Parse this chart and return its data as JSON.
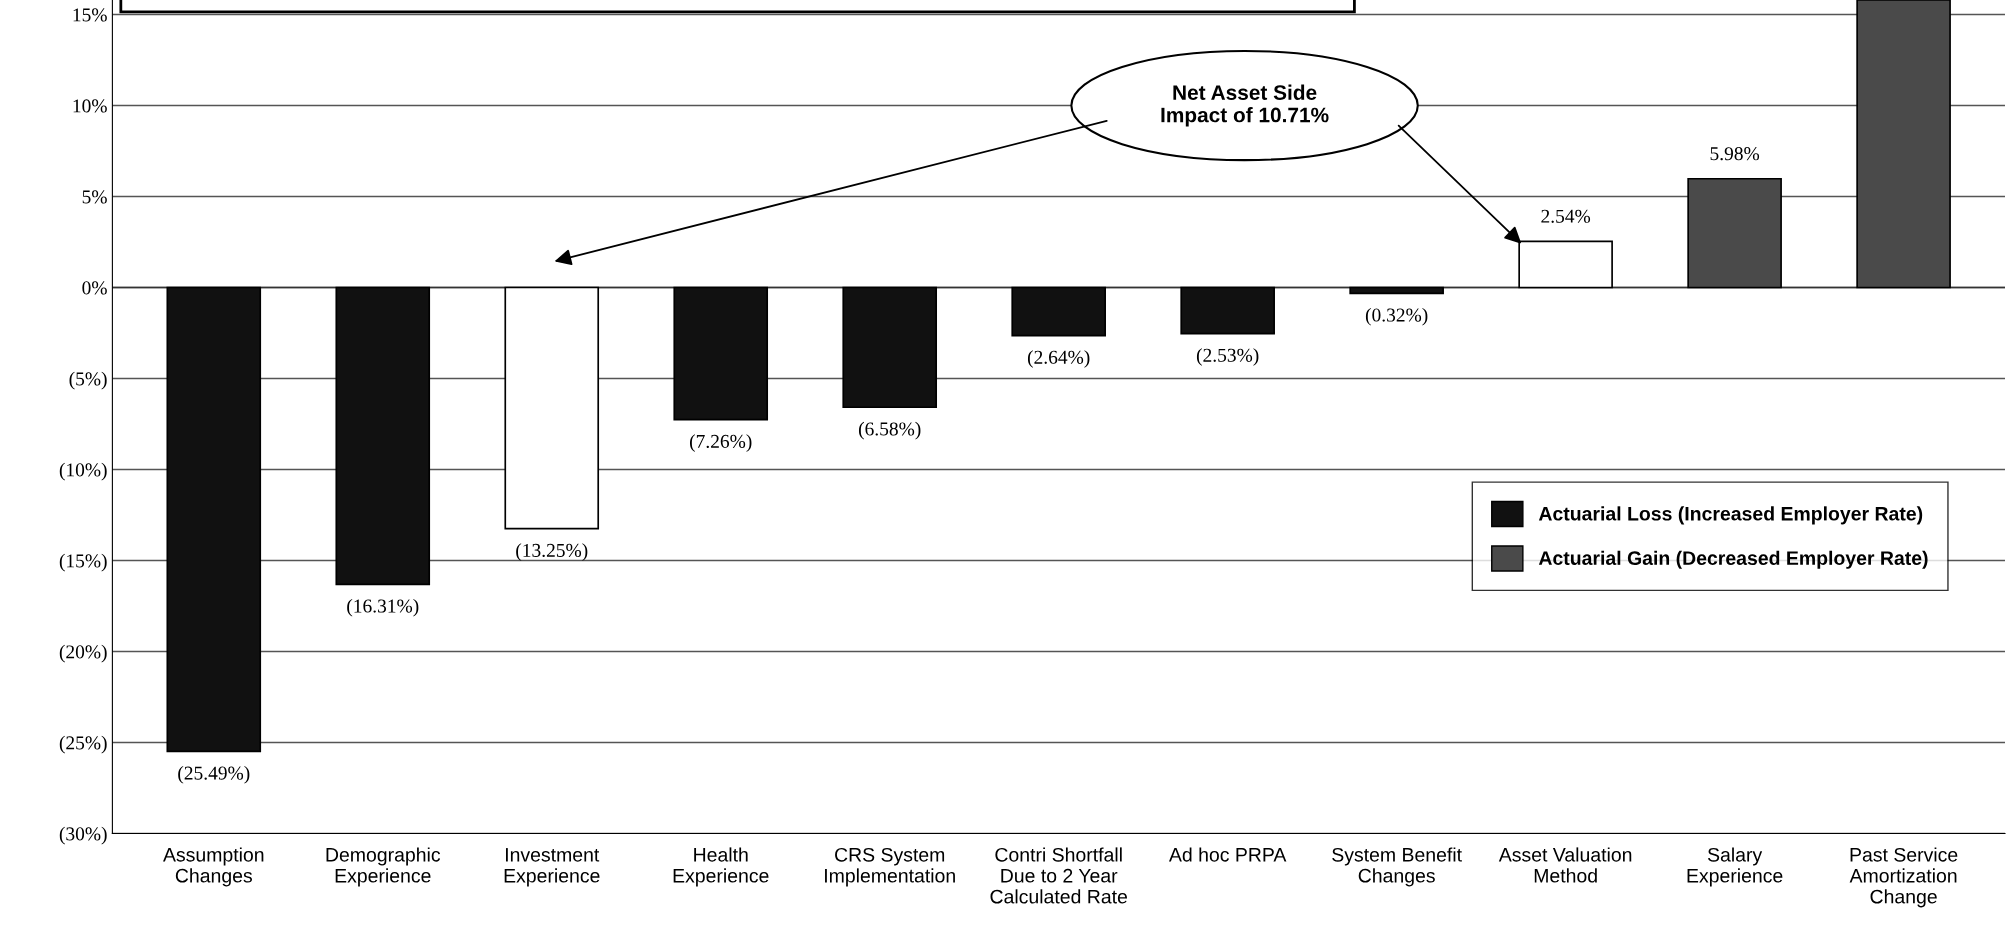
{
  "chart_data": {
    "type": "bar",
    "stacked": true,
    "categories": [
      "Assumption\nChanges",
      "Demographic\nExperience",
      "Investment\nExperience",
      "Health\nExperience",
      "CRS System\nImplementation",
      "Contri Shortfall\nDue to 2 Year\nCalculated Rate",
      "Ad hoc PRPA",
      "System Benefit\nChanges",
      "Asset Valuation\nMethod",
      "Salary\nExperience",
      "Past Service\nAmortization\nChange"
    ],
    "series": [
      {
        "name": "Actuarial Loss (Increased Employer Rate)",
        "color": "#111111",
        "values": [
          -25.49,
          -16.31,
          null,
          -7.26,
          -6.58,
          -2.64,
          -2.53,
          -0.32,
          null,
          null,
          null
        ],
        "value_labels": [
          "(25.49%)",
          "(16.31%)",
          null,
          "(7.26%)",
          "(6.58%)",
          "(2.64%)",
          "(2.53%)",
          "(0.32%)",
          null,
          null,
          null
        ]
      },
      {
        "name": "Actuarial Gain (Decreased Employer Rate)",
        "color": "#4a4a4a",
        "values": [
          null,
          null,
          null,
          null,
          null,
          null,
          null,
          null,
          null,
          5.98,
          15.8
        ],
        "value_labels": [
          null,
          null,
          null,
          null,
          null,
          null,
          null,
          null,
          null,
          "5.98%",
          null
        ]
      },
      {
        "color": "#ffffff",
        "values": [
          null,
          null,
          -13.25,
          null,
          null,
          null,
          null,
          null,
          2.54,
          null,
          null
        ],
        "value_labels": [
          null,
          null,
          "(13.25%)",
          null,
          null,
          null,
          null,
          null,
          "2.54%",
          null,
          null
        ]
      }
    ],
    "ylim": [
      -30,
      15.8
    ],
    "yticks": [
      {
        "value": 15,
        "label": "15%"
      },
      {
        "value": 10,
        "label": "10%"
      },
      {
        "value": 5,
        "label": "5%"
      },
      {
        "value": 0,
        "label": "0%"
      },
      {
        "value": -5,
        "label": "(5%)"
      },
      {
        "value": -10,
        "label": "(10%)"
      },
      {
        "value": -15,
        "label": "(15%)"
      },
      {
        "value": -20,
        "label": "(20%)"
      },
      {
        "value": -25,
        "label": "(25%)"
      },
      {
        "value": -30,
        "label": "(30%)"
      }
    ],
    "grid": "y",
    "legend": "lower right",
    "annotations": [
      "Net Asset Side\nImpact of 10.71%"
    ]
  }
}
